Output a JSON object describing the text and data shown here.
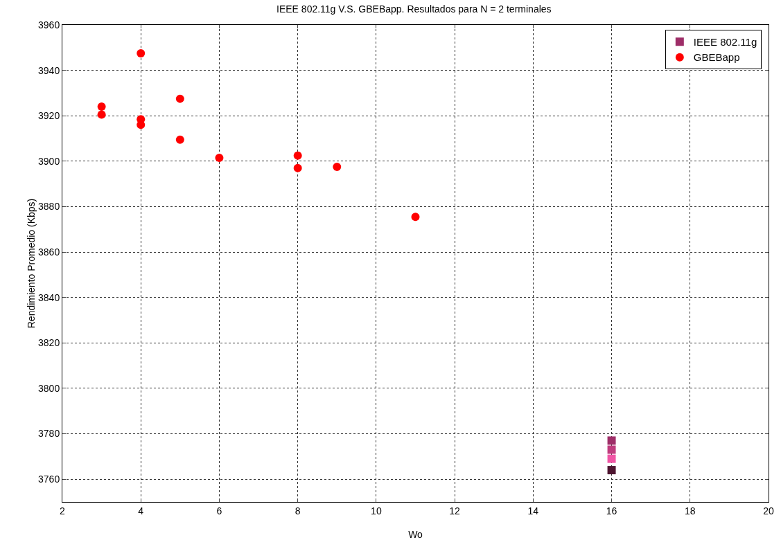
{
  "chart_data": {
    "type": "scatter",
    "title": "IEEE 802.11g V.S. GBEBapp. Resultados para N = 2 terminales",
    "xlabel": "Wo",
    "ylabel": "Rendimiento Promedio (Kbps)",
    "xlim": [
      2,
      20
    ],
    "xticks": [
      2,
      4,
      6,
      8,
      10,
      12,
      14,
      16,
      18,
      20
    ],
    "ylim": [
      3750,
      3960
    ],
    "yticks": [
      3760,
      3780,
      3800,
      3820,
      3840,
      3860,
      3880,
      3900,
      3920,
      3940,
      3960
    ],
    "grid": true,
    "legend": "top right",
    "series": [
      {
        "name": "IEEE 802.11g",
        "marker": "square",
        "color": "#6b2246",
        "colors": [
          "#9e2e68",
          "#c03c7e",
          "#f055a5",
          "#4e1530"
        ],
        "x": [
          16,
          16,
          16,
          16
        ],
        "values": [
          3777,
          3773,
          3769,
          3764
        ]
      },
      {
        "name": "GBEBapp",
        "marker": "circle",
        "color": "#ff0000",
        "x": [
          3,
          3,
          4,
          4,
          4,
          5,
          5,
          6,
          8,
          8,
          9,
          11
        ],
        "values": [
          3924,
          3920.5,
          3947.5,
          3918.5,
          3916,
          3927.5,
          3909.5,
          3901.5,
          3902.5,
          3897,
          3897.5,
          3875.5
        ]
      }
    ]
  }
}
